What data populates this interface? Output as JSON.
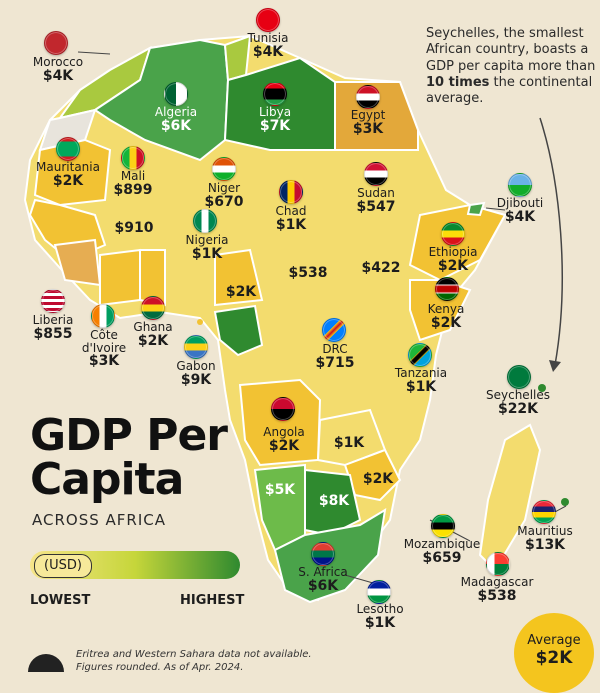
{
  "title": {
    "line1": "GDP Per",
    "line2": "Capita"
  },
  "subtitle": "ACROSS AFRICA",
  "callout": {
    "text_before": "Seychelles, the smallest African country, boasts a GDP per capita more than ",
    "text_bold": "10 times",
    "text_after": " the continental average."
  },
  "legend": {
    "unit": "(USD)",
    "low": "LOWEST",
    "high": "HIGHEST",
    "colors": [
      "#f6e58a",
      "#c6d63a",
      "#2f8a2f"
    ]
  },
  "footnote": {
    "line1": "Eritrea and Western Sahara data not available.",
    "line2": "Figures rounded. As of Apr. 2024."
  },
  "average": {
    "label": "Average",
    "value": "$2K"
  },
  "countries": [
    {
      "name": "Tunisia",
      "value": "$4K",
      "flag": "tunisia-flag-icon"
    },
    {
      "name": "Morocco",
      "value": "$4K",
      "flag": "morocco-flag-icon"
    },
    {
      "name": "Algeria",
      "value": "$6K",
      "flag": "algeria-flag-icon"
    },
    {
      "name": "Libya",
      "value": "$7K",
      "flag": "libya-flag-icon"
    },
    {
      "name": "Egypt",
      "value": "$3K",
      "flag": "egypt-flag-icon"
    },
    {
      "name": "Mauritania",
      "value": "$2K",
      "flag": "mauritania-flag-icon"
    },
    {
      "name": "Mali",
      "value": "$899",
      "flag": "mali-flag-icon"
    },
    {
      "name": "Niger",
      "value": "$670",
      "flag": "niger-flag-icon"
    },
    {
      "name": "Chad",
      "value": "$1K",
      "flag": "chad-flag-icon"
    },
    {
      "name": "Sudan",
      "value": "$547",
      "flag": "sudan-flag-icon"
    },
    {
      "name": "Djibouti",
      "value": "$4K",
      "flag": "djibouti-flag-icon"
    },
    {
      "name": "Ethiopia",
      "value": "$2K",
      "flag": "ethiopia-flag-icon"
    },
    {
      "name": "Nigeria",
      "value": "$1K",
      "flag": "nigeria-flag-icon"
    },
    {
      "name": "Liberia",
      "value": "$855",
      "flag": "liberia-flag-icon"
    },
    {
      "name": "Côte d'Ivoire",
      "value": "$3K",
      "flag": "cote-divoire-flag-icon"
    },
    {
      "name": "Ghana",
      "value": "$2K",
      "flag": "ghana-flag-icon"
    },
    {
      "name": "Gabon",
      "value": "$9K",
      "flag": "gabon-flag-icon"
    },
    {
      "name": "DRC",
      "value": "$715",
      "flag": "drc-flag-icon"
    },
    {
      "name": "Kenya",
      "value": "$2K",
      "flag": "kenya-flag-icon"
    },
    {
      "name": "Tanzania",
      "value": "$1K",
      "flag": "tanzania-flag-icon"
    },
    {
      "name": "Seychelles",
      "value": "$22K",
      "flag": "seychelles-flag-icon"
    },
    {
      "name": "Angola",
      "value": "$2K",
      "flag": "angola-flag-icon"
    },
    {
      "name": "Mauritius",
      "value": "$13K",
      "flag": "mauritius-flag-icon"
    },
    {
      "name": "Mozambique",
      "value": "$659",
      "flag": "mozambique-flag-icon"
    },
    {
      "name": "Madagascar",
      "value": "$538",
      "flag": "madagascar-flag-icon"
    },
    {
      "name": "S. Africa",
      "value": "$6K",
      "flag": "south-africa-flag-icon"
    },
    {
      "name": "Lesotho",
      "value": "$1K",
      "flag": "lesotho-flag-icon"
    }
  ],
  "unlabeled_values": [
    "$910",
    "$538",
    "$422",
    "$2K",
    "$1K",
    "$2K",
    "$5K",
    "$8K"
  ]
}
